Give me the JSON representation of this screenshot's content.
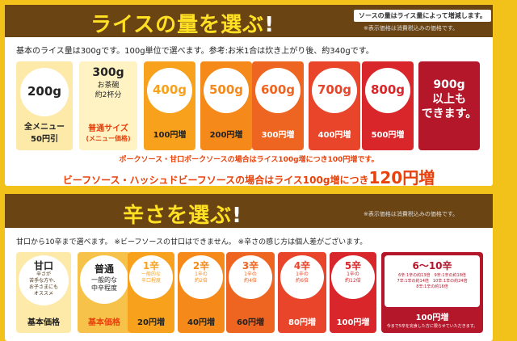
{
  "rice": {
    "title_part": "ライスの量を選ぶ",
    "title_mark": "!",
    "note_box": "ソースの量はライス量によって増減します。",
    "tax_note": "※表示価格は消費税込みの価格です。",
    "intro": "基本のライス量は300gです。100g単位で選べます。参考:お米1合は炊き上がり後、約340gです。",
    "options": [
      {
        "amount": "200g",
        "price": "全メニュー\n50円引",
        "sub": ""
      },
      {
        "amount": "300g",
        "detail": "お茶碗\n約2杯分",
        "price": "普通サイズ",
        "sub": "(メニュー価格)"
      },
      {
        "amount": "400g",
        "price": "100円増"
      },
      {
        "amount": "500g",
        "price": "200円増"
      },
      {
        "amount": "600g",
        "price": "300円増"
      },
      {
        "amount": "700g",
        "price": "400円増"
      },
      {
        "amount": "800g",
        "price": "500円増"
      },
      {
        "amount": "900g\n以上も\nできます。"
      }
    ],
    "note_pork": "ポークソース・甘口ポークソースの場合はライス100g増につき100円増です。",
    "note_beef_text": "ビーフソース・ハッシュドビーフソースの場合はライス100g増につき",
    "note_beef_price": "120円増"
  },
  "spice": {
    "title_part": "辛さを選ぶ",
    "title_mark": "!",
    "tax_note": "※表示価格は消費税込みの価格です。",
    "intro": "甘口から10辛まで選べます。 ※ビーフソースの甘口はできません。 ※辛さの感じ方は個人差がございます。",
    "options": [
      {
        "level": "甘口",
        "detail": "辛さが\n苦手な方や、\nお子さまにも\nオススメ",
        "price": "基本価格"
      },
      {
        "level": "普通",
        "detail": "一般的な\n中辛程度",
        "price": "基本価格"
      },
      {
        "level": "1辛",
        "detail": "一般的な\n辛口程度",
        "price": "20円増"
      },
      {
        "level": "2辛",
        "detail": "1辛の\n約2倍",
        "price": "40円増"
      },
      {
        "level": "3辛",
        "detail": "1辛の\n約4倍",
        "price": "60円増"
      },
      {
        "level": "4辛",
        "detail": "1辛の\n約6倍",
        "price": "80円増"
      },
      {
        "level": "5辛",
        "detail": "1辛の\n約12倍",
        "price": "100円増"
      },
      {
        "level": "6〜10辛",
        "detail": "6辛:1辛の約13倍　9辛:1辛の約18倍\n7辛:1辛の約14倍　10辛:1辛の約24倍\n8辛:1辛の約16倍",
        "price": "100円増",
        "footnote": "今まで5辛を完食した方に限らせていただきます。"
      }
    ]
  },
  "colors": {
    "background": "#f2c21a",
    "header": "#6a4413",
    "title_text": "#ffe022",
    "accent_red": "#e8420c",
    "card_200": "#fde9a8",
    "card_300": "#f4a21c",
    "card_400": "#f8a11c",
    "card_500": "#f58a1a",
    "card_600": "#ee6522",
    "card_700": "#e8452b",
    "card_800": "#d8262a",
    "card_900": "#b4162a"
  }
}
